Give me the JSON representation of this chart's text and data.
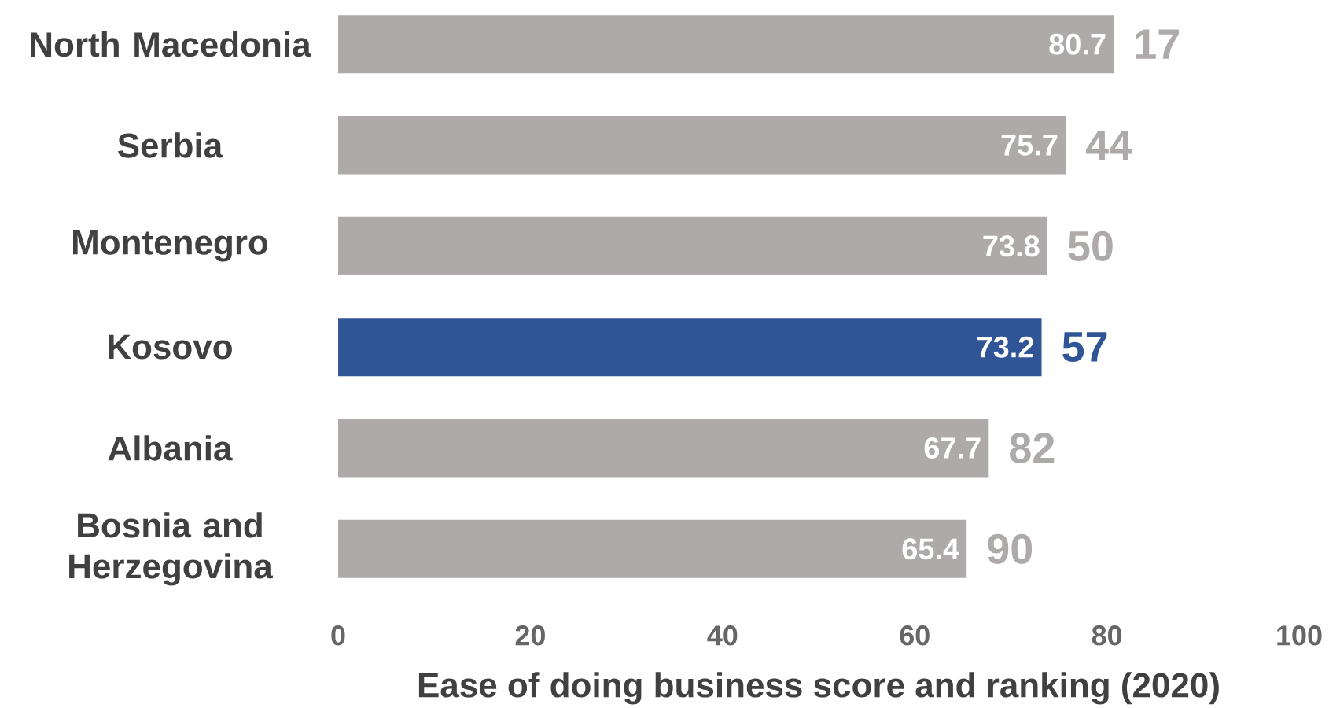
{
  "chart_data": {
    "type": "bar",
    "orientation": "horizontal",
    "xlabel": "Ease of doing business score and ranking (2020)",
    "categories": [
      "North Macedonia",
      "Serbia",
      "Montenegro",
      "Kosovo",
      "Albania",
      "Bosnia and Herzegovina"
    ],
    "values": [
      80.7,
      75.7,
      73.8,
      73.2,
      67.7,
      65.4
    ],
    "colors": [
      "#aeaaaa",
      "#aeaaaa",
      "#aeaaaa",
      "#2f5597",
      "#aeaaaa",
      "#aeaaaa"
    ],
    "data_labels": true,
    "xlim": [
      0,
      100
    ],
    "xticks": [
      0,
      20,
      40,
      60,
      80,
      100
    ],
    "grid": false,
    "annotations": [
      {
        "text": "17",
        "x": 80.7,
        "y": "North Macedonia"
      },
      {
        "text": "44",
        "x": 75.7,
        "y": "Serbia"
      },
      {
        "text": "50",
        "x": 73.8,
        "y": "Montenegro"
      },
      {
        "text": "57",
        "x": 73.2,
        "y": "Kosovo"
      },
      {
        "text": "82",
        "x": 67.7,
        "y": "Albania"
      },
      {
        "text": "90",
        "x": 65.4,
        "y": "Bosnia and Herzegovina"
      }
    ]
  }
}
